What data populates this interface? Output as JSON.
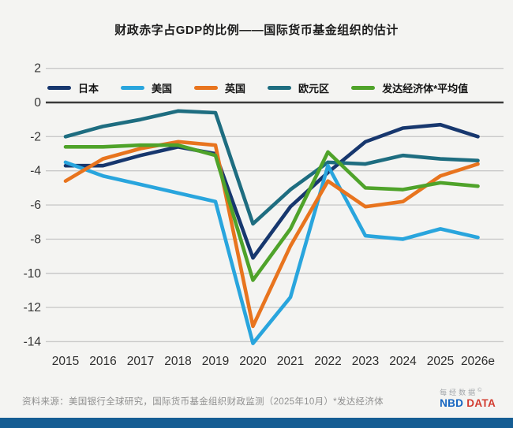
{
  "title": "财政赤字占GDP的比例——国际货币基金组织的估计",
  "source_note": "资料来源：美国银行全球研究，国际货币基金组织财政监测（2025年10月）*发达经济体",
  "logo": {
    "cn": "每经数据",
    "copyright": "©",
    "en_blue": "NBD",
    "en_red": "DATA"
  },
  "colors": {
    "background": "#f4f4f2",
    "gridline": "#c9c9c9",
    "zero_line": "#3a3a3a",
    "axis_text": "#333333",
    "bottom_bar": "#155d93"
  },
  "chart_data": {
    "type": "line",
    "title": "财政赤字占GDP的比例——国际货币基金组织的估计",
    "xlabel": "",
    "ylabel": "",
    "ylim": [
      -14.8,
      2
    ],
    "grid": true,
    "legend_position": "top",
    "categories": [
      "2015",
      "2016",
      "2017",
      "2018",
      "2019",
      "2020",
      "2021",
      "2022",
      "2023",
      "2024",
      "2025",
      "2026e"
    ],
    "y_ticks": [
      2,
      0,
      -2,
      -4,
      -6,
      -8,
      -10,
      -12,
      -14
    ],
    "series": [
      {
        "name": "日本",
        "color": "#17376e",
        "values": [
          -3.7,
          -3.7,
          -3.1,
          -2.6,
          -3.0,
          -9.1,
          -6.1,
          -4.1,
          -2.3,
          -1.5,
          -1.3,
          -2.0
        ]
      },
      {
        "name": "美国",
        "color": "#29a5dd",
        "values": [
          -3.5,
          -4.3,
          -4.8,
          -5.3,
          -5.8,
          -14.1,
          -11.4,
          -3.7,
          -7.8,
          -8.0,
          -7.4,
          -7.9
        ]
      },
      {
        "name": "英国",
        "color": "#e8741e",
        "values": [
          -4.6,
          -3.3,
          -2.7,
          -2.3,
          -2.5,
          -13.1,
          -8.4,
          -4.6,
          -6.1,
          -5.8,
          -4.3,
          -3.6
        ]
      },
      {
        "name": "欧元区",
        "color": "#1e6d80",
        "values": [
          -2.0,
          -1.4,
          -1.0,
          -0.5,
          -0.6,
          -7.1,
          -5.1,
          -3.5,
          -3.6,
          -3.1,
          -3.3,
          -3.4
        ]
      },
      {
        "name": "发达经济体*平均值",
        "color": "#4fa32a",
        "values": [
          -2.6,
          -2.6,
          -2.5,
          -2.5,
          -3.1,
          -10.4,
          -7.4,
          -2.9,
          -5.0,
          -5.1,
          -4.7,
          -4.9
        ]
      }
    ]
  }
}
